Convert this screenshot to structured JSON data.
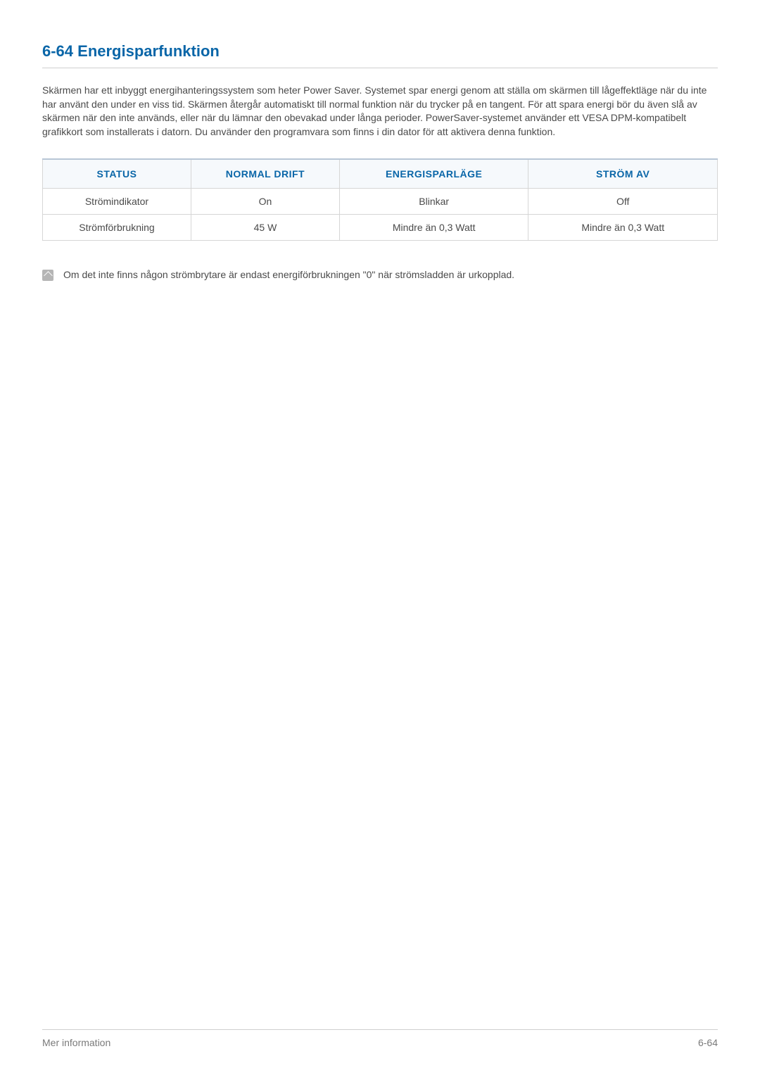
{
  "heading": "6-64  Energisparfunktion",
  "paragraph": "Skärmen har ett inbyggt energihanteringssystem som heter Power Saver. Systemet spar energi genom att ställa om skärmen till lågeffektläge när du inte har använt den under en viss tid. Skärmen återgår automatiskt till normal funktion när du trycker på en tangent. För att spara energi bör du även slå av skärmen när den inte används, eller när du lämnar den obevakad under långa perioder. PowerSaver-systemet använder ett VESA DPM-kompatibelt grafikkort som installerats i datorn. Du använder den programvara som finns i din dator för att aktivera denna funktion.",
  "table": {
    "headers": [
      "STATUS",
      "NORMAL DRIFT",
      "ENERGISPARLÄGE",
      "STRÖM AV"
    ],
    "rows": [
      [
        "Strömindikator",
        "On",
        "Blinkar",
        "Off"
      ],
      [
        "Strömförbrukning",
        "45 W",
        "Mindre än 0,3 Watt",
        "Mindre än 0,3 Watt"
      ]
    ]
  },
  "note": "Om det inte finns någon strömbrytare är endast energiförbrukningen \"0\" när strömsladden är urkopplad.",
  "footer": {
    "left": "Mer information",
    "right": "6-64"
  },
  "colors": {
    "heading": "#0a66a8",
    "text": "#4a4a4a",
    "tableHeaderBg": "#f6f9fc",
    "border": "#d6d6d6",
    "footerText": "#7a7a7a"
  }
}
